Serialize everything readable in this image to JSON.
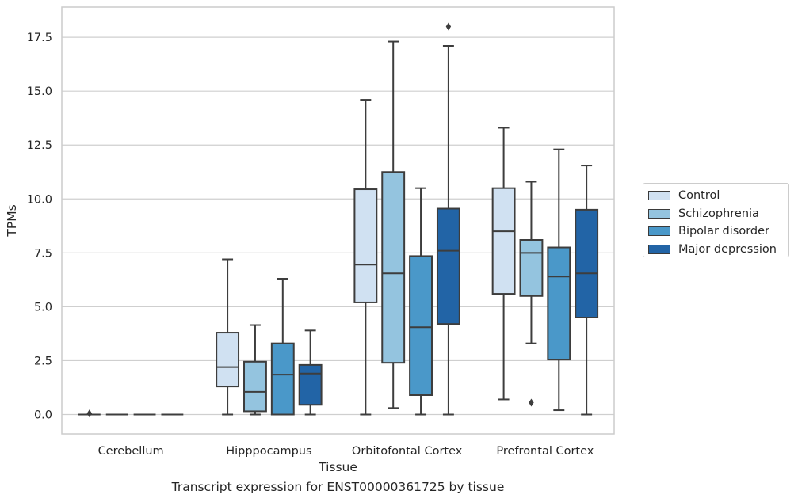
{
  "caption": "Transcript expression for ENST00000361725 by tissue",
  "chart_data": {
    "type": "box",
    "xlabel": "Tissue",
    "ylabel": "TPMs",
    "ylim": [
      -0.9,
      18.9
    ],
    "yticks": [
      0.0,
      2.5,
      5.0,
      7.5,
      10.0,
      12.5,
      15.0,
      17.5
    ],
    "ytick_labels": [
      "0.0",
      "2.5",
      "5.0",
      "7.5",
      "10.0",
      "12.5",
      "15.0",
      "17.5"
    ],
    "categories": [
      "Cerebellum",
      "Hipppocampus",
      "Orbitofontal Cortex",
      "Prefrontal Cortex"
    ],
    "grid": "horizontal",
    "legend_position": "right",
    "series": [
      {
        "name": "Control",
        "color": "#d0e1f2",
        "boxes": [
          {
            "whislo": 0.0,
            "q1": 0.0,
            "med": 0.0,
            "q3": 0.0,
            "whishi": 0.0,
            "fliers": [
              0.05
            ]
          },
          {
            "whislo": 0.0,
            "q1": 1.3,
            "med": 2.2,
            "q3": 3.8,
            "whishi": 7.2,
            "fliers": []
          },
          {
            "whislo": 0.0,
            "q1": 5.2,
            "med": 6.95,
            "q3": 10.45,
            "whishi": 14.6,
            "fliers": []
          },
          {
            "whislo": 0.7,
            "q1": 5.6,
            "med": 8.5,
            "q3": 10.5,
            "whishi": 13.3,
            "fliers": []
          }
        ]
      },
      {
        "name": "Schizophrenia",
        "color": "#94c4df",
        "boxes": [
          {
            "whislo": 0.0,
            "q1": 0.0,
            "med": 0.0,
            "q3": 0.0,
            "whishi": 0.0,
            "fliers": []
          },
          {
            "whislo": 0.0,
            "q1": 0.15,
            "med": 1.05,
            "q3": 2.45,
            "whishi": 4.15,
            "fliers": []
          },
          {
            "whislo": 0.3,
            "q1": 2.4,
            "med": 6.55,
            "q3": 11.25,
            "whishi": 17.3,
            "fliers": []
          },
          {
            "whislo": 3.3,
            "q1": 5.5,
            "med": 7.5,
            "q3": 8.1,
            "whishi": 10.8,
            "fliers": [
              0.55
            ]
          }
        ]
      },
      {
        "name": "Bipolar disorder",
        "color": "#4a98c9",
        "boxes": [
          {
            "whislo": 0.0,
            "q1": 0.0,
            "med": 0.0,
            "q3": 0.0,
            "whishi": 0.0,
            "fliers": []
          },
          {
            "whislo": 0.0,
            "q1": 0.0,
            "med": 1.85,
            "q3": 3.3,
            "whishi": 6.3,
            "fliers": []
          },
          {
            "whislo": 0.0,
            "q1": 0.9,
            "med": 4.05,
            "q3": 7.35,
            "whishi": 10.5,
            "fliers": []
          },
          {
            "whislo": 0.2,
            "q1": 2.55,
            "med": 6.4,
            "q3": 7.75,
            "whishi": 12.3,
            "fliers": []
          }
        ]
      },
      {
        "name": "Major depression",
        "color": "#2264a6",
        "boxes": [
          {
            "whislo": 0.0,
            "q1": 0.0,
            "med": 0.0,
            "q3": 0.0,
            "whishi": 0.0,
            "fliers": []
          },
          {
            "whislo": 0.0,
            "q1": 0.45,
            "med": 1.9,
            "q3": 2.3,
            "whishi": 3.9,
            "fliers": []
          },
          {
            "whislo": 0.0,
            "q1": 4.2,
            "med": 7.6,
            "q3": 9.55,
            "whishi": 17.1,
            "fliers": [
              18.0
            ]
          },
          {
            "whislo": 0.0,
            "q1": 4.5,
            "med": 6.55,
            "q3": 9.5,
            "whishi": 11.55,
            "fliers": []
          }
        ]
      }
    ]
  }
}
